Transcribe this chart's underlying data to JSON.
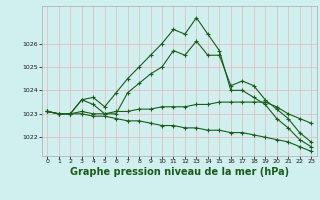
{
  "background_color": "#cff0ee",
  "grid_color": "#e8b4b8",
  "line_color": "#1a5c1a",
  "xlabel": "Graphe pression niveau de la mer (hPa)",
  "xlabel_fontsize": 7,
  "ylim": [
    1021.2,
    1027.6
  ],
  "yticks": [
    1022,
    1023,
    1024,
    1025,
    1026
  ],
  "ytick_labels": [
    "1022",
    "1023",
    "1024",
    "1025",
    "1026"
  ],
  "xticks": [
    0,
    1,
    2,
    3,
    4,
    5,
    6,
    7,
    8,
    9,
    10,
    11,
    12,
    13,
    14,
    15,
    16,
    17,
    18,
    19,
    20,
    21,
    22,
    23
  ],
  "line1_x": [
    0,
    1,
    2,
    3,
    4,
    5,
    6,
    7,
    8,
    9,
    10,
    11,
    12,
    13,
    14,
    15,
    16,
    17,
    18,
    19,
    20,
    21,
    22,
    23
  ],
  "line1_y": [
    1023.1,
    1023.0,
    1023.0,
    1023.6,
    1023.4,
    1023.0,
    1023.0,
    1023.9,
    1024.3,
    1024.7,
    1025.0,
    1025.7,
    1025.5,
    1026.1,
    1025.5,
    1025.5,
    1024.2,
    1024.4,
    1024.2,
    1023.6,
    1023.2,
    1022.8,
    1022.2,
    1021.8
  ],
  "line2_x": [
    0,
    1,
    2,
    3,
    4,
    5,
    6,
    7,
    8,
    9,
    10,
    11,
    12,
    13,
    14,
    15,
    16,
    17,
    18,
    19,
    20,
    21,
    22,
    23
  ],
  "line2_y": [
    1023.1,
    1023.0,
    1023.0,
    1023.6,
    1023.7,
    1023.3,
    1023.9,
    1024.5,
    1025.0,
    1025.5,
    1026.0,
    1026.6,
    1026.4,
    1027.1,
    1026.4,
    1025.7,
    1024.0,
    1024.0,
    1023.7,
    1023.4,
    1022.8,
    1022.4,
    1021.9,
    1021.6
  ],
  "line3_x": [
    0,
    1,
    2,
    3,
    4,
    5,
    6,
    7,
    8,
    9,
    10,
    11,
    12,
    13,
    14,
    15,
    16,
    17,
    18,
    19,
    20,
    21,
    22,
    23
  ],
  "line3_y": [
    1023.1,
    1023.0,
    1023.0,
    1023.1,
    1023.0,
    1023.0,
    1023.1,
    1023.1,
    1023.2,
    1023.2,
    1023.3,
    1023.3,
    1023.3,
    1023.4,
    1023.4,
    1023.5,
    1023.5,
    1023.5,
    1023.5,
    1023.5,
    1023.3,
    1023.0,
    1022.8,
    1022.6
  ],
  "line4_x": [
    0,
    1,
    2,
    3,
    4,
    5,
    6,
    7,
    8,
    9,
    10,
    11,
    12,
    13,
    14,
    15,
    16,
    17,
    18,
    19,
    20,
    21,
    22,
    23
  ],
  "line4_y": [
    1023.1,
    1023.0,
    1023.0,
    1023.0,
    1022.9,
    1022.9,
    1022.8,
    1022.7,
    1022.7,
    1022.6,
    1022.5,
    1022.5,
    1022.4,
    1022.4,
    1022.3,
    1022.3,
    1022.2,
    1022.2,
    1022.1,
    1022.0,
    1021.9,
    1021.8,
    1021.6,
    1021.4
  ]
}
